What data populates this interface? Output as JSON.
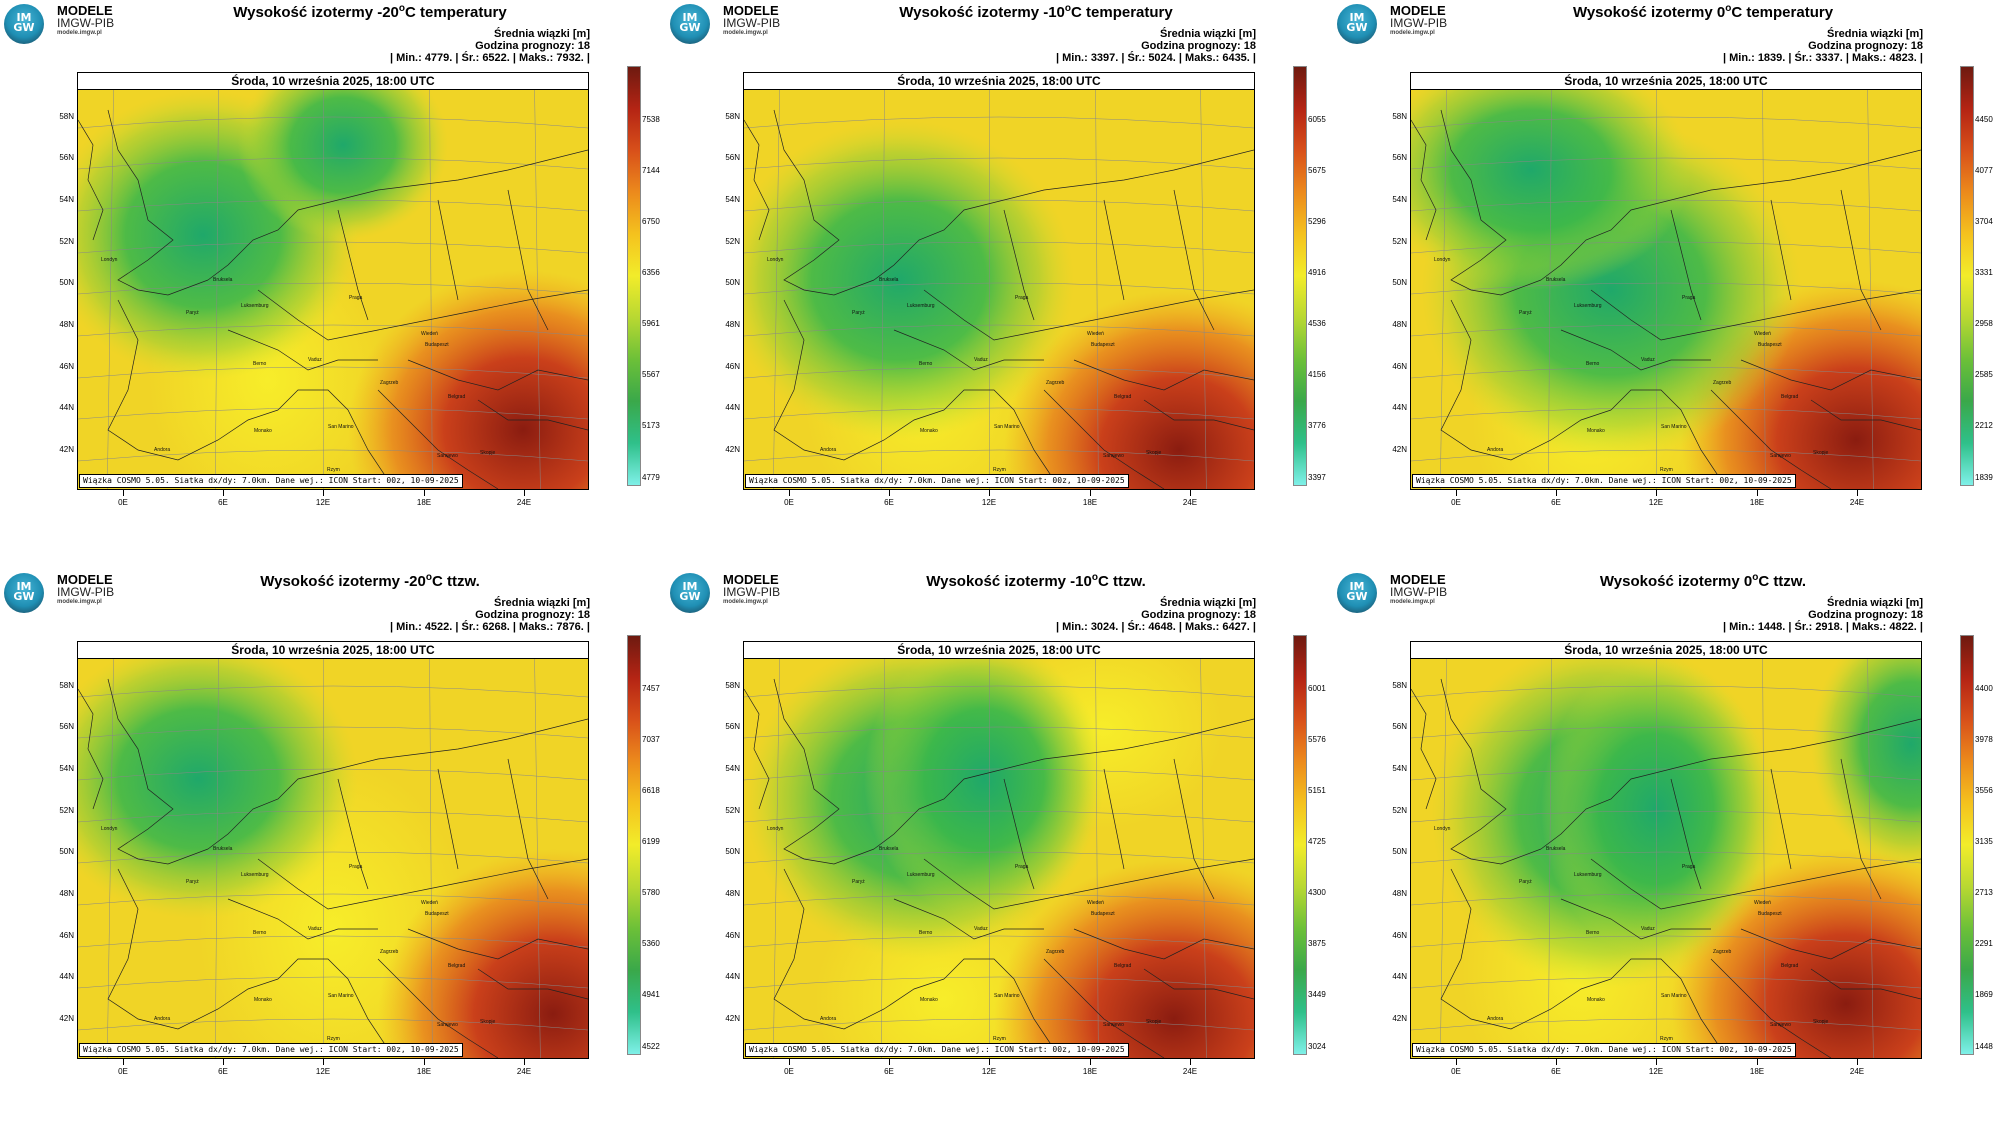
{
  "logo": {
    "mark": "IM GW",
    "title": "MODELE",
    "subtitle": "IMGW-PIB",
    "url": "modele.imgw.pl"
  },
  "common": {
    "info_line1": "Średnia wiązki [m]",
    "info_line2": "Godzina prognozy: 18",
    "date": "Środa, 10 września 2025, 18:00 UTC",
    "footer": "Wiązka COSMO 5.05. Siatka dx/dy: 7.0km. Dane wej.: ICON Start: 00z, 10-09-2025",
    "lat_labels": [
      "58N",
      "56N",
      "54N",
      "52N",
      "50N",
      "48N",
      "46N",
      "44N",
      "42N"
    ],
    "lon_labels": [
      "0E",
      "6E",
      "12E",
      "18E",
      "24E"
    ],
    "cities": [
      "Londyn",
      "Bruksela",
      "Paryż",
      "Luksemburg",
      "Praga",
      "Wiedeń",
      "Budapeszt",
      "Berno",
      "Vaduz",
      "Zagrzeb",
      "Belgrad",
      "San Marino",
      "Sarajewo",
      "Monako",
      "Andora",
      "Skopje",
      "Rzym"
    ]
  },
  "panels": [
    {
      "title_prefix": "Wysokość izotermy -20",
      "title_sup": "o",
      "title_suffix": "C temperatury",
      "stats": "| Min.:   4779. | Śr.:   6522. | Maks.:   7932. |",
      "cbar_ticks": [
        "7538",
        "7144",
        "6750",
        "6356",
        "5961",
        "5567",
        "5173",
        "4779"
      ],
      "field": {
        "min": 4779,
        "mean": 6522,
        "max": 7932
      }
    },
    {
      "title_prefix": "Wysokość izotermy -10",
      "title_sup": "o",
      "title_suffix": "C temperatury",
      "stats": "| Min.:   3397. | Śr.:   5024. | Maks.:   6435. |",
      "cbar_ticks": [
        "6055",
        "5675",
        "5296",
        "4916",
        "4536",
        "4156",
        "3776",
        "3397"
      ],
      "field": {
        "min": 3397,
        "mean": 5024,
        "max": 6435
      }
    },
    {
      "title_prefix": "Wysokość izotermy 0",
      "title_sup": "o",
      "title_suffix": "C temperatury",
      "stats": "| Min.:   1839. | Śr.:   3337. | Maks.:   4823. |",
      "cbar_ticks": [
        "4450",
        "4077",
        "3704",
        "3331",
        "2958",
        "2585",
        "2212",
        "1839"
      ],
      "field": {
        "min": 1839,
        "mean": 3337,
        "max": 4823
      }
    },
    {
      "title_prefix": "Wysokość izotermy -20",
      "title_sup": "o",
      "title_suffix": "C ttzw.",
      "stats": "| Min.:   4522. | Śr.:   6268. | Maks.:   7876. |",
      "cbar_ticks": [
        "7457",
        "7037",
        "6618",
        "6199",
        "5780",
        "5360",
        "4941",
        "4522"
      ],
      "field": {
        "min": 4522,
        "mean": 6268,
        "max": 7876
      }
    },
    {
      "title_prefix": "Wysokość izotermy -10",
      "title_sup": "o",
      "title_suffix": "C ttzw.",
      "stats": "| Min.:   3024. | Śr.:   4648. | Maks.:   6427. |",
      "cbar_ticks": [
        "6001",
        "5576",
        "5151",
        "4725",
        "4300",
        "3875",
        "3449",
        "3024"
      ],
      "field": {
        "min": 3024,
        "mean": 4648,
        "max": 6427
      }
    },
    {
      "title_prefix": "Wysokość izotermy 0",
      "title_sup": "o",
      "title_suffix": "C ttzw.",
      "stats": "| Min.:   1448. | Śr.:   2918. | Maks.:   4822. |",
      "cbar_ticks": [
        "4400",
        "3978",
        "3556",
        "3135",
        "2713",
        "2291",
        "1869",
        "1448"
      ],
      "field": {
        "min": 1448,
        "mean": 2918,
        "max": 4822
      }
    }
  ]
}
